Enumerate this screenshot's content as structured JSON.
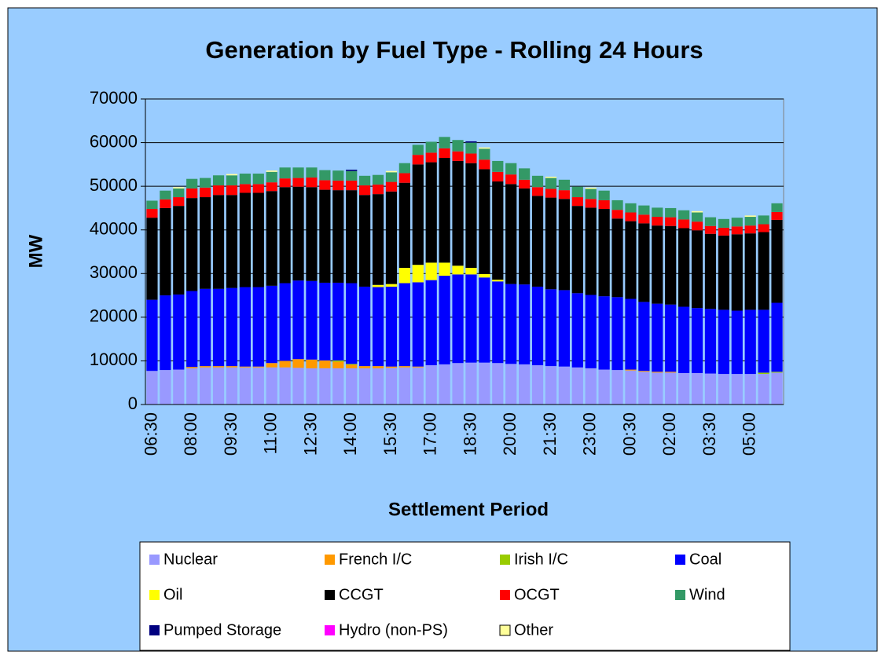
{
  "chart_data": {
    "type": "stacked_bar",
    "title": "Generation by Fuel Type - Rolling 24 Hours",
    "y_label": "MW",
    "x_label": "Settlement Period",
    "categories": [
      "06:30",
      null,
      null,
      "08:00",
      null,
      null,
      "09:30",
      null,
      null,
      "11:00",
      null,
      null,
      "12:30",
      null,
      null,
      "14:00",
      null,
      null,
      "15:30",
      null,
      null,
      "17:00",
      null,
      null,
      "18:30",
      null,
      null,
      "20:00",
      null,
      null,
      "21:30",
      null,
      null,
      "23:00",
      null,
      null,
      "00:30",
      null,
      null,
      "02:00",
      null,
      null,
      "03:30",
      null,
      null,
      "05:00",
      null,
      null
    ],
    "ylim": [
      0,
      70000
    ],
    "yticks": [
      0,
      10000,
      20000,
      30000,
      40000,
      50000,
      60000,
      70000
    ],
    "grid": true,
    "series": [
      {
        "name": "Nuclear",
        "color": "#9999ff",
        "values": [
          7700,
          7900,
          8000,
          8300,
          8500,
          8500,
          8500,
          8500,
          8500,
          8500,
          8500,
          8400,
          8300,
          8300,
          8300,
          8300,
          8300,
          8300,
          8400,
          8500,
          8500,
          9000,
          9200,
          9500,
          9600,
          9600,
          9500,
          9300,
          9200,
          9000,
          8800,
          8700,
          8500,
          8300,
          8000,
          7900,
          7800,
          7500,
          7300,
          7300,
          7200,
          7200,
          7100,
          7000,
          7000,
          7000,
          7000,
          7300
        ]
      },
      {
        "name": "French I/C",
        "color": "#ff9900",
        "values": [
          0,
          0,
          0,
          300,
          300,
          300,
          300,
          200,
          200,
          1000,
          1500,
          2000,
          2000,
          1800,
          1500,
          800,
          500,
          500,
          300,
          300,
          200,
          0,
          0,
          0,
          0,
          0,
          0,
          0,
          0,
          0,
          0,
          0,
          0,
          0,
          0,
          0,
          200,
          200,
          200,
          200,
          0,
          0,
          0,
          0,
          0,
          0,
          0,
          0
        ]
      },
      {
        "name": "Irish I/C",
        "color": "#99cc00",
        "values": [
          0,
          0,
          0,
          0,
          0,
          0,
          0,
          0,
          0,
          0,
          0,
          0,
          0,
          0,
          300,
          200,
          0,
          0,
          0,
          0,
          0,
          0,
          0,
          0,
          0,
          0,
          0,
          0,
          0,
          0,
          0,
          0,
          0,
          0,
          0,
          0,
          0,
          0,
          0,
          0,
          0,
          0,
          0,
          0,
          0,
          0,
          300,
          200
        ]
      },
      {
        "name": "Coal",
        "color": "#0000ff",
        "values": [
          16300,
          17100,
          17200,
          17400,
          17700,
          17700,
          17900,
          18200,
          18200,
          17700,
          17800,
          18000,
          18000,
          17800,
          17800,
          18500,
          18200,
          18100,
          18300,
          19000,
          19300,
          19500,
          20300,
          20300,
          20200,
          19500,
          18700,
          18300,
          18300,
          18000,
          17600,
          17500,
          17000,
          16800,
          16800,
          16700,
          16200,
          15800,
          15600,
          15400,
          15200,
          14900,
          14800,
          14700,
          14500,
          14700,
          14400,
          15800
        ]
      },
      {
        "name": "Oil",
        "color": "#ffff00",
        "values": [
          0,
          0,
          0,
          0,
          0,
          0,
          0,
          0,
          0,
          0,
          0,
          0,
          0,
          0,
          0,
          0,
          0,
          500,
          600,
          3500,
          4000,
          4000,
          3000,
          2000,
          1500,
          800,
          400,
          0,
          0,
          0,
          0,
          0,
          0,
          0,
          0,
          0,
          0,
          0,
          0,
          0,
          0,
          0,
          0,
          0,
          0,
          0,
          0,
          0
        ]
      },
      {
        "name": "CCGT",
        "color": "#000000",
        "values": [
          18800,
          20000,
          20300,
          21300,
          21000,
          21500,
          21300,
          21600,
          21600,
          21700,
          22000,
          21500,
          21500,
          21300,
          21200,
          21300,
          21000,
          20800,
          21200,
          19500,
          23000,
          23000,
          24000,
          24000,
          24000,
          24000,
          22500,
          22900,
          22000,
          20800,
          21000,
          20900,
          20000,
          20000,
          20000,
          18000,
          17800,
          18000,
          17900,
          18000,
          18000,
          17800,
          17200,
          17000,
          17500,
          17500,
          17800,
          19000
        ]
      },
      {
        "name": "OCGT",
        "color": "#ff0000",
        "values": [
          2000,
          2000,
          2000,
          2200,
          2200,
          2200,
          2200,
          2000,
          2000,
          2000,
          2000,
          2000,
          2200,
          2200,
          2200,
          2200,
          2200,
          2200,
          2200,
          2200,
          2200,
          2200,
          2200,
          2200,
          2200,
          2200,
          2200,
          2200,
          2000,
          2000,
          2000,
          2000,
          2000,
          2000,
          2000,
          2000,
          2000,
          2000,
          2000,
          2000,
          2000,
          2000,
          1800,
          1800,
          1800,
          1800,
          1800,
          1800
        ]
      },
      {
        "name": "Wind",
        "color": "#339966",
        "values": [
          1900,
          2000,
          2000,
          2200,
          2200,
          2300,
          2300,
          2400,
          2400,
          2400,
          2500,
          2400,
          2300,
          2300,
          2300,
          2200,
          2200,
          2200,
          2200,
          2300,
          2300,
          2500,
          2600,
          2600,
          2500,
          2500,
          2500,
          2600,
          2600,
          2600,
          2500,
          2400,
          2400,
          2300,
          2200,
          2200,
          2100,
          2100,
          2100,
          2100,
          2100,
          2100,
          2000,
          2000,
          2000,
          2000,
          2000,
          2000
        ]
      },
      {
        "name": "Pumped Storage",
        "color": "#000080",
        "values": [
          0,
          0,
          0,
          0,
          0,
          0,
          0,
          0,
          0,
          0,
          0,
          0,
          0,
          0,
          0,
          300,
          0,
          0,
          0,
          0,
          0,
          0,
          0,
          0,
          300,
          0,
          0,
          0,
          0,
          0,
          0,
          0,
          0,
          0,
          0,
          0,
          0,
          0,
          0,
          0,
          0,
          0,
          0,
          0,
          0,
          0,
          0,
          0
        ]
      },
      {
        "name": "Hydro (non-PS)",
        "color": "#ff00ff",
        "values": [
          0,
          0,
          0,
          0,
          0,
          0,
          0,
          0,
          0,
          0,
          0,
          0,
          0,
          0,
          0,
          0,
          0,
          0,
          0,
          0,
          0,
          0,
          0,
          0,
          0,
          0,
          0,
          0,
          0,
          0,
          0,
          0,
          0,
          0,
          0,
          0,
          0,
          0,
          0,
          0,
          0,
          0,
          0,
          0,
          0,
          0,
          0,
          0
        ]
      },
      {
        "name": "Other",
        "color": "#ffff99",
        "values": [
          0,
          0,
          300,
          0,
          0,
          0,
          300,
          0,
          0,
          300,
          0,
          0,
          0,
          0,
          0,
          0,
          0,
          0,
          300,
          0,
          0,
          0,
          0,
          0,
          0,
          300,
          0,
          0,
          0,
          0,
          300,
          0,
          0,
          300,
          0,
          0,
          0,
          0,
          0,
          0,
          0,
          300,
          0,
          0,
          0,
          300,
          0,
          0
        ]
      }
    ]
  }
}
